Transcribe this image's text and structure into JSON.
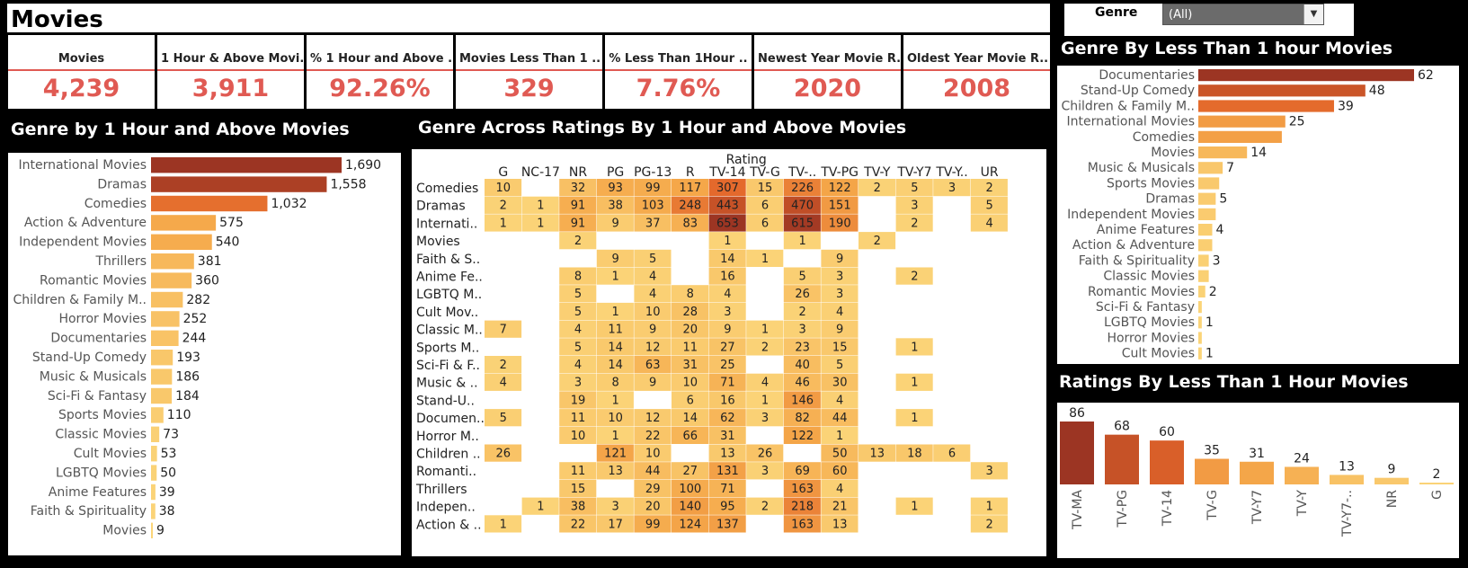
{
  "title": "Movies",
  "filter": {
    "label": "Genre",
    "value": "(All)"
  },
  "kpis": [
    {
      "label": "Movies",
      "value": "4,239"
    },
    {
      "label": "1 Hour & Above Movi..",
      "value": "3,911"
    },
    {
      "label": "% 1 Hour and Above ..",
      "value": "92.26%"
    },
    {
      "label": "Movies Less Than 1 ..",
      "value": "329"
    },
    {
      "label": "% Less Than 1Hour ..",
      "value": "7.76%"
    },
    {
      "label": "Newest Year Movie R..",
      "value": "2020"
    },
    {
      "label": "Oldest Year Movie R..",
      "value": "2008"
    }
  ],
  "panels": {
    "left_title": "Genre by 1 Hour and Above Movies",
    "mid_title": "Genre Across Ratings By 1 Hour and Above Movies",
    "rt_title": "Genre By Less Than 1 hour Movies",
    "rb_title": "Ratings By Less Than 1 Hour Movies"
  },
  "chart_data": [
    {
      "type": "bar",
      "orientation": "horizontal",
      "title": "Genre by 1 Hour and Above Movies",
      "categories": [
        "International Movies",
        "Dramas",
        "Comedies",
        "Action & Adventure",
        "Independent Movies",
        "Thrillers",
        "Romantic Movies",
        "Children & Family M..",
        "Horror Movies",
        "Documentaries",
        "Stand-Up Comedy",
        "Music & Musicals",
        "Sci-Fi & Fantasy",
        "Sports Movies",
        "Classic Movies",
        "Cult Movies",
        "LGBTQ Movies",
        "Anime Features",
        "Faith & Spirituality",
        "Movies"
      ],
      "values": [
        1690,
        1558,
        1032,
        575,
        540,
        381,
        360,
        282,
        252,
        244,
        193,
        186,
        184,
        110,
        73,
        53,
        50,
        39,
        38,
        9
      ],
      "labels": [
        "1,690",
        "1,558",
        "1,032",
        "575",
        "540",
        "381",
        "360",
        "282",
        "252",
        "244",
        "193",
        "186",
        "184",
        "110",
        "73",
        "53",
        "50",
        "39",
        "38",
        "9"
      ],
      "colors": {
        "high": "#a23b23",
        "mid": "#e06a24",
        "low": "#f7c25a"
      }
    },
    {
      "type": "heatmap",
      "title": "Genre Across Ratings By 1 Hour and Above Movies",
      "column_header": "Rating",
      "columns": [
        "G",
        "NC-17",
        "NR",
        "PG",
        "PG-13",
        "R",
        "TV-14",
        "TV-G",
        "TV-..",
        "TV-PG",
        "TV-Y",
        "TV-Y7",
        "TV-Y..",
        "UR"
      ],
      "rows": [
        "Comedies",
        "Dramas",
        "Internati..",
        "Movies",
        "Faith & S..",
        "Anime Fe..",
        "LGBTQ M..",
        "Cult Mov..",
        "Classic M..",
        "Sports M..",
        "Sci-Fi & F..",
        "Music & ..",
        "Stand-U..",
        "Documen..",
        "Horror M..",
        "Children ..",
        "Romanti..",
        "Thrillers",
        "Indepen..",
        "Action & .."
      ],
      "values": [
        [
          10,
          null,
          32,
          93,
          99,
          117,
          307,
          15,
          226,
          122,
          2,
          5,
          3,
          2
        ],
        [
          2,
          1,
          91,
          38,
          103,
          248,
          443,
          6,
          470,
          151,
          null,
          3,
          null,
          5
        ],
        [
          1,
          1,
          91,
          9,
          37,
          83,
          653,
          6,
          615,
          190,
          null,
          2,
          null,
          4
        ],
        [
          null,
          null,
          2,
          null,
          null,
          null,
          1,
          null,
          1,
          null,
          2,
          null,
          null,
          null
        ],
        [
          null,
          null,
          null,
          9,
          5,
          null,
          14,
          1,
          null,
          9,
          null,
          null,
          null,
          null
        ],
        [
          null,
          null,
          8,
          1,
          4,
          null,
          16,
          null,
          5,
          3,
          null,
          2,
          null,
          null
        ],
        [
          null,
          null,
          5,
          null,
          4,
          8,
          4,
          null,
          26,
          3,
          null,
          null,
          null,
          null
        ],
        [
          null,
          null,
          5,
          1,
          10,
          28,
          3,
          null,
          2,
          4,
          null,
          null,
          null,
          null
        ],
        [
          7,
          null,
          4,
          11,
          9,
          20,
          9,
          1,
          3,
          9,
          null,
          null,
          null,
          null
        ],
        [
          null,
          null,
          5,
          14,
          12,
          11,
          27,
          2,
          23,
          15,
          null,
          1,
          null,
          null
        ],
        [
          2,
          null,
          4,
          14,
          63,
          31,
          25,
          null,
          40,
          5,
          null,
          null,
          null,
          null
        ],
        [
          4,
          null,
          3,
          8,
          9,
          10,
          71,
          4,
          46,
          30,
          null,
          1,
          null,
          null
        ],
        [
          null,
          null,
          19,
          1,
          null,
          6,
          16,
          1,
          146,
          4,
          null,
          null,
          null,
          null
        ],
        [
          5,
          null,
          11,
          10,
          12,
          14,
          62,
          3,
          82,
          44,
          null,
          1,
          null,
          null
        ],
        [
          null,
          null,
          10,
          1,
          22,
          66,
          31,
          null,
          122,
          1,
          null,
          null,
          null,
          null
        ],
        [
          26,
          null,
          null,
          121,
          10,
          null,
          13,
          26,
          null,
          50,
          13,
          18,
          6,
          null
        ],
        [
          null,
          null,
          11,
          13,
          44,
          27,
          131,
          3,
          69,
          60,
          null,
          null,
          null,
          3
        ],
        [
          null,
          null,
          15,
          null,
          29,
          100,
          71,
          null,
          163,
          4,
          null,
          null,
          null,
          null
        ],
        [
          null,
          1,
          38,
          3,
          20,
          140,
          95,
          2,
          218,
          21,
          null,
          1,
          null,
          1
        ],
        [
          1,
          null,
          22,
          17,
          99,
          124,
          137,
          null,
          163,
          13,
          null,
          null,
          null,
          2
        ]
      ]
    },
    {
      "type": "bar",
      "orientation": "horizontal",
      "title": "Genre By Less Than 1 hour Movies",
      "categories": [
        "Documentaries",
        "Stand-Up Comedy",
        "Children & Family M..",
        "International Movies",
        "Comedies",
        "Movies",
        "Music & Musicals",
        "Sports Movies",
        "Dramas",
        "Independent Movies",
        "Anime Features",
        "Action & Adventure",
        "Faith & Spirituality",
        "Classic Movies",
        "Romantic Movies",
        "Sci-Fi & Fantasy",
        "LGBTQ Movies",
        "Horror Movies",
        "Cult Movies"
      ],
      "values": [
        62,
        48,
        39,
        25,
        24,
        14,
        7,
        6,
        5,
        5,
        4,
        4,
        3,
        3,
        2,
        1,
        1,
        1,
        1
      ],
      "labels": [
        "62",
        "48",
        "39",
        "25",
        "",
        "14",
        "7",
        "",
        "5",
        "",
        "4",
        "",
        "3",
        "",
        "2",
        "",
        "1",
        "",
        "1"
      ]
    },
    {
      "type": "bar",
      "orientation": "vertical",
      "title": "Ratings By Less Than 1 Hour Movies",
      "categories": [
        "TV-MA",
        "TV-PG",
        "TV-14",
        "TV-G",
        "TV-Y7",
        "TV-Y",
        "TV-Y7-..",
        "NR",
        "G"
      ],
      "values": [
        86,
        68,
        60,
        35,
        31,
        24,
        13,
        9,
        2
      ],
      "labels": [
        "86",
        "68",
        "60",
        "35",
        "31",
        "24",
        "13",
        "9",
        "2"
      ]
    }
  ]
}
